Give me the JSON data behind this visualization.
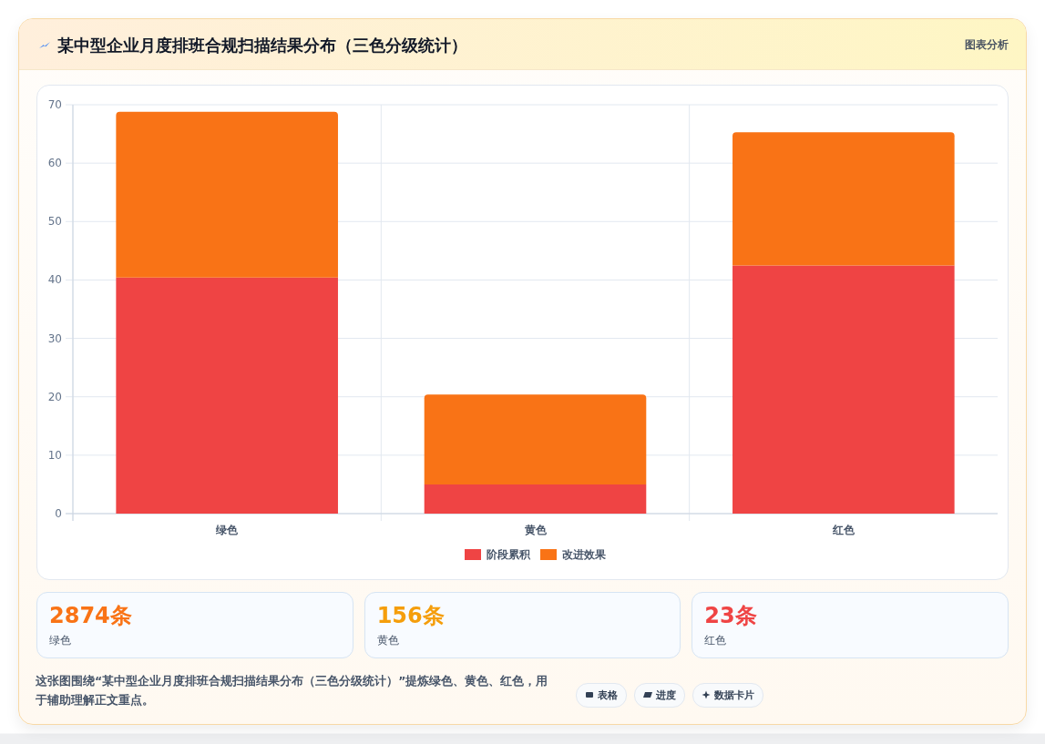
{
  "chart_data": [
    {
      "type": "bar",
      "title": "某中型企业月度排班合规扫描结果分布（三色分级统计）",
      "categories": [
        "绿色",
        "黄色",
        "红色"
      ],
      "series": [
        {
          "name": "阶段累积",
          "color": "#ef4444",
          "values": [
            40.4,
            5,
            42.5
          ]
        },
        {
          "name": "改进效果",
          "color": "#f97316",
          "values": [
            28.4,
            15.4,
            22.8
          ]
        }
      ],
      "stacked": true,
      "ylim": [
        0,
        70
      ],
      "yticks": [
        0,
        10,
        20,
        30,
        40,
        50,
        60,
        70
      ],
      "grid": true,
      "legend": "bottom",
      "annotations": [
        "图表分析",
        "这张图围绕“某中型企业月度排班合规扫描结果分布（三色分级统计）”提炼绿色、黄色、红色，用于辅助理解正文重点。",
        "表格",
        "进度",
        "数据卡片"
      ]
    },
    {
      "type": "other",
      "categories": [
        "绿色",
        "黄色",
        "红色"
      ],
      "value_labels": [
        "2874条",
        "156条",
        "23条"
      ]
    }
  ]
}
